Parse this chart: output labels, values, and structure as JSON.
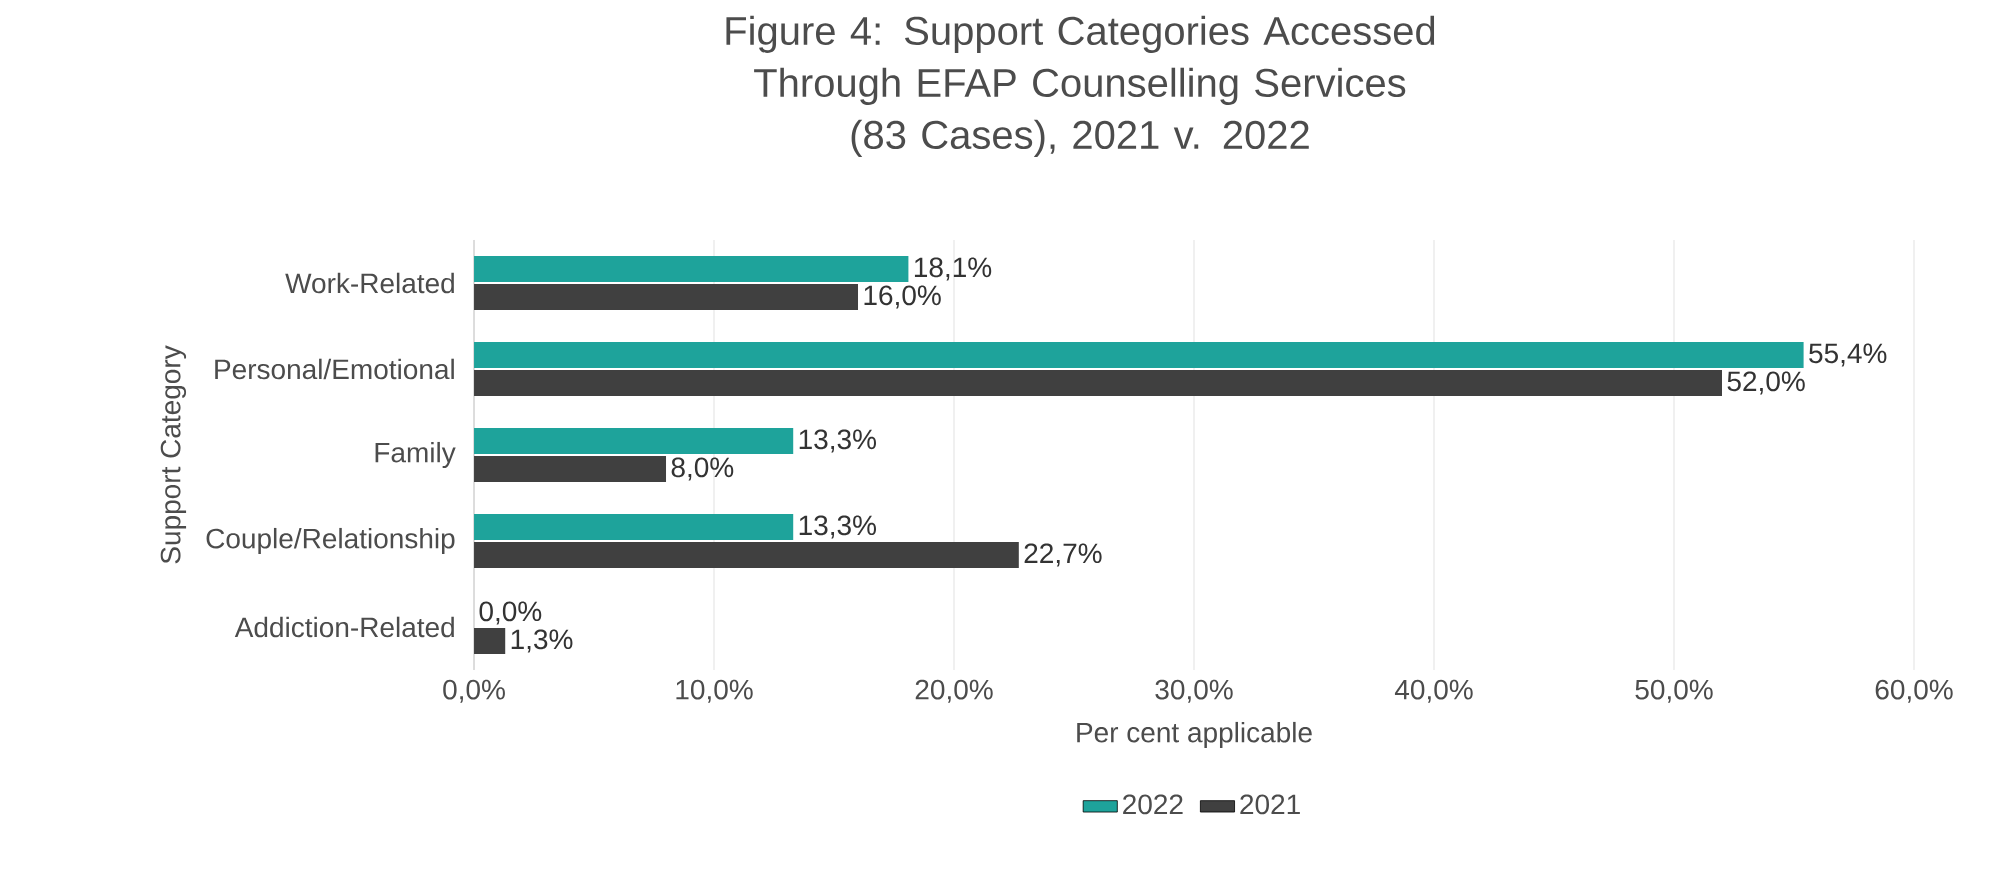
{
  "chart_data": {
    "type": "bar",
    "orientation": "horizontal",
    "title": "Figure 4: Support Categories Accessed Through EFAP Counselling Services",
    "subtitle": "(83 Cases), 2021 v. 2022",
    "xlabel": "Per cent applicable",
    "ylabel": "Support Category",
    "categories": [
      "Work-Related",
      "Personal/Emotional",
      "Family",
      "Couple/Relationship",
      "Addiction-Related"
    ],
    "series": [
      {
        "name": "2022",
        "color": "#1ea39b",
        "values": [
          18.1,
          55.4,
          13.3,
          13.3,
          0.0
        ],
        "value_labels": [
          "18,1%",
          "55,4%",
          "13,3%",
          "13,3%",
          "0,0%"
        ]
      },
      {
        "name": "2021",
        "color": "#404040",
        "values": [
          16.0,
          52.0,
          8.0,
          22.7,
          1.3
        ],
        "value_labels": [
          "16,0%",
          "52,0%",
          "8,0%",
          "22,7%",
          "1,3%"
        ]
      }
    ],
    "xlim": [
      0,
      60
    ],
    "xticks": [
      {
        "value": 0,
        "label": "0,0%"
      },
      {
        "value": 10,
        "label": "10,0%"
      },
      {
        "value": 20,
        "label": "20,0%"
      },
      {
        "value": 30,
        "label": "30,0%"
      },
      {
        "value": 40,
        "label": "40,0%"
      },
      {
        "value": 50,
        "label": "50,0%"
      },
      {
        "value": 60,
        "label": "60,0%"
      }
    ],
    "grid": "x",
    "legend": "bottom"
  }
}
